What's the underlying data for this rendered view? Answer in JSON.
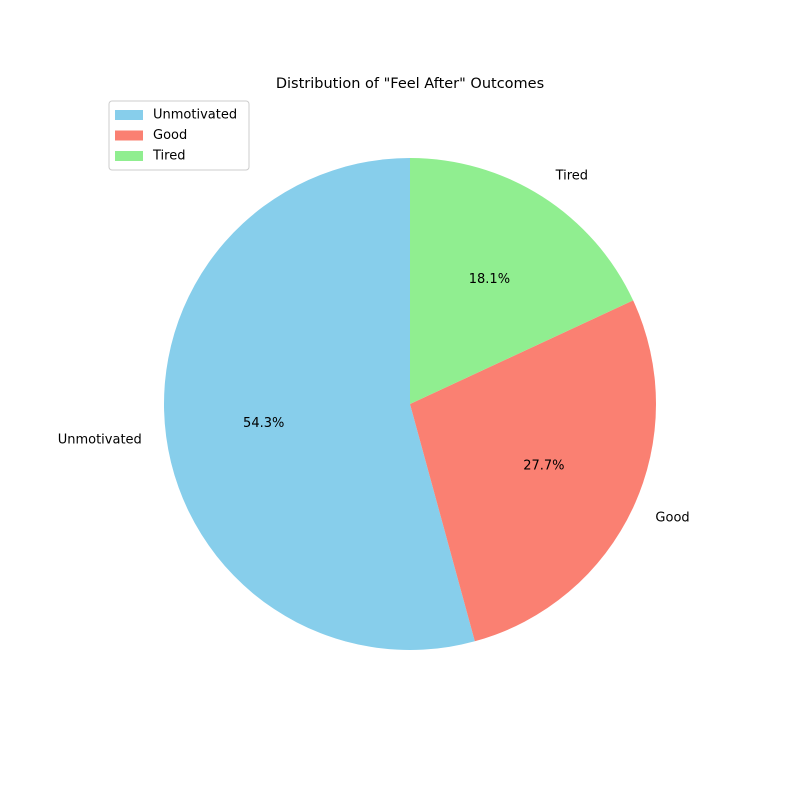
{
  "chart_data": {
    "type": "pie",
    "title": "Distribution of \"Feel After\" Outcomes",
    "start_angle_deg": 90,
    "direction": "counterclockwise",
    "legend_position": "upper-left",
    "slices": [
      {
        "label": "Unmotivated",
        "value": 54.3,
        "pct_label": "54.3%",
        "color": "#87CEEB"
      },
      {
        "label": "Good",
        "value": 27.7,
        "pct_label": "27.7%",
        "color": "#FA8072"
      },
      {
        "label": "Tired",
        "value": 18.1,
        "pct_label": "18.1%",
        "color": "#90EE90"
      }
    ]
  }
}
